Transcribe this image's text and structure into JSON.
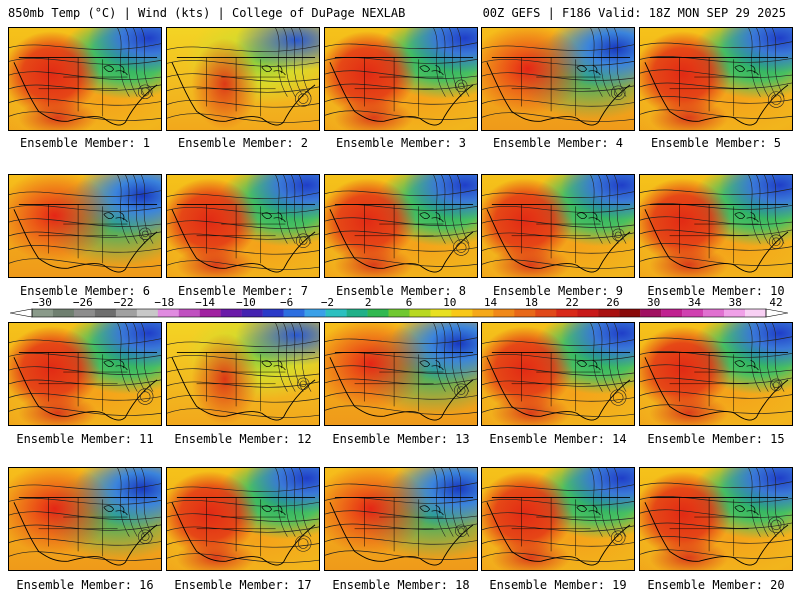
{
  "header": {
    "left_title": "850mb Temp (°C) | Wind (kts) | College of DuPage NEXLAB",
    "right_title": "00Z GEFS | F186 Valid: 18Z MON SEP 29 2025"
  },
  "panels": [
    {
      "label": "Ensemble Member: 1"
    },
    {
      "label": "Ensemble Member: 2"
    },
    {
      "label": "Ensemble Member: 3"
    },
    {
      "label": "Ensemble Member: 4"
    },
    {
      "label": "Ensemble Member: 5"
    },
    {
      "label": "Ensemble Member: 6"
    },
    {
      "label": "Ensemble Member: 7"
    },
    {
      "label": "Ensemble Member: 8"
    },
    {
      "label": "Ensemble Member: 9"
    },
    {
      "label": "Ensemble Member: 10"
    },
    {
      "label": "Ensemble Member: 11"
    },
    {
      "label": "Ensemble Member: 12"
    },
    {
      "label": "Ensemble Member: 13"
    },
    {
      "label": "Ensemble Member: 14"
    },
    {
      "label": "Ensemble Member: 15"
    },
    {
      "label": "Ensemble Member: 16"
    },
    {
      "label": "Ensemble Member: 17"
    },
    {
      "label": "Ensemble Member: 18"
    },
    {
      "label": "Ensemble Member: 19"
    },
    {
      "label": "Ensemble Member: 20"
    }
  ],
  "colorbar": {
    "ticks": [
      "−30",
      "−26",
      "−22",
      "−18",
      "−14",
      "−10",
      "−6",
      "−2",
      "2",
      "6",
      "10",
      "14",
      "18",
      "22",
      "26",
      "30",
      "34",
      "38",
      "42"
    ],
    "colors": [
      "#8a9a8a",
      "#6f7f70",
      "#8c8c8c",
      "#6e6e6e",
      "#a0a0a0",
      "#c8c8c8",
      "#e08be0",
      "#c050c0",
      "#a020a0",
      "#6a1aa8",
      "#4422b0",
      "#2a3ac8",
      "#2c6ee0",
      "#3aa0e8",
      "#2cc0c0",
      "#20b088",
      "#30b850",
      "#70c830",
      "#b8d820",
      "#e8e020",
      "#f8c818",
      "#f5a818",
      "#f08818",
      "#e86818",
      "#e04818",
      "#d82818",
      "#c81818",
      "#a81010",
      "#8a0a0a",
      "#a01060",
      "#c02090",
      "#d040b0",
      "#e070d0",
      "#f0a0e8",
      "#f8d0f4"
    ]
  }
}
